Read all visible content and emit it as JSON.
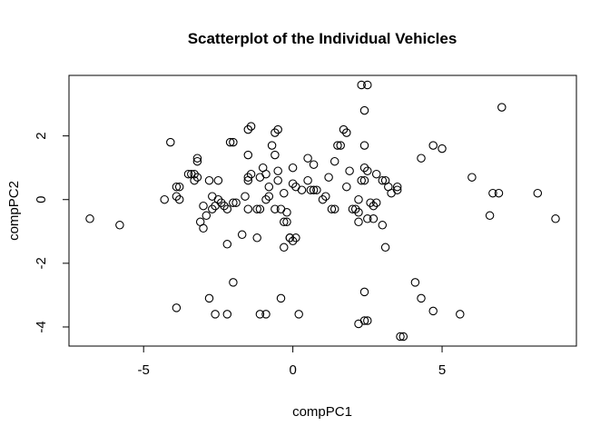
{
  "chart_data": {
    "type": "scatter",
    "title": "Scatterplot of the Individual Vehicles",
    "xlabel": "compPC1",
    "ylabel": "compPC2",
    "xlim": [
      -7.5,
      9.5
    ],
    "ylim": [
      -4.6,
      3.9
    ],
    "xticks": [
      -5,
      0,
      5
    ],
    "yticks": [
      -4,
      -2,
      0,
      2
    ],
    "grid": false,
    "points": [
      {
        "x": -6.8,
        "y": -0.6
      },
      {
        "x": -5.8,
        "y": -0.8
      },
      {
        "x": -4.3,
        "y": 0.0
      },
      {
        "x": -4.1,
        "y": 1.8
      },
      {
        "x": -3.9,
        "y": 0.4
      },
      {
        "x": -3.8,
        "y": 0.4
      },
      {
        "x": -3.9,
        "y": 0.1
      },
      {
        "x": -3.8,
        "y": 0.0
      },
      {
        "x": -3.9,
        "y": -3.4
      },
      {
        "x": -3.5,
        "y": 0.8
      },
      {
        "x": -3.4,
        "y": 0.8
      },
      {
        "x": -3.3,
        "y": 0.8
      },
      {
        "x": -3.2,
        "y": 0.7
      },
      {
        "x": -3.3,
        "y": 0.6
      },
      {
        "x": -3.2,
        "y": 1.2
      },
      {
        "x": -3.2,
        "y": 1.3
      },
      {
        "x": -3.0,
        "y": -0.2
      },
      {
        "x": -3.1,
        "y": -0.7
      },
      {
        "x": -2.9,
        "y": -0.5
      },
      {
        "x": -3.0,
        "y": -0.9
      },
      {
        "x": -2.8,
        "y": 0.6
      },
      {
        "x": -2.7,
        "y": 0.1
      },
      {
        "x": -2.6,
        "y": -0.2
      },
      {
        "x": -2.7,
        "y": -0.3
      },
      {
        "x": -2.5,
        "y": 0.0
      },
      {
        "x": -2.5,
        "y": 0.6
      },
      {
        "x": -2.6,
        "y": -3.6
      },
      {
        "x": -2.8,
        "y": -3.1
      },
      {
        "x": -2.4,
        "y": -0.1
      },
      {
        "x": -2.3,
        "y": -0.2
      },
      {
        "x": -2.2,
        "y": -0.3
      },
      {
        "x": -2.2,
        "y": -1.4
      },
      {
        "x": -2.1,
        "y": 1.8
      },
      {
        "x": -2.0,
        "y": 1.8
      },
      {
        "x": -2.0,
        "y": -0.1
      },
      {
        "x": -1.9,
        "y": -0.1
      },
      {
        "x": -2.0,
        "y": -2.6
      },
      {
        "x": -2.2,
        "y": -3.6
      },
      {
        "x": -1.7,
        "y": -1.1
      },
      {
        "x": -1.6,
        "y": 0.1
      },
      {
        "x": -1.5,
        "y": 0.7
      },
      {
        "x": -1.5,
        "y": 0.6
      },
      {
        "x": -1.4,
        "y": 0.8
      },
      {
        "x": -1.5,
        "y": 1.4
      },
      {
        "x": -1.5,
        "y": 2.2
      },
      {
        "x": -1.4,
        "y": 2.3
      },
      {
        "x": -1.5,
        "y": -0.3
      },
      {
        "x": -1.2,
        "y": -0.3
      },
      {
        "x": -1.1,
        "y": -0.3
      },
      {
        "x": -1.2,
        "y": -1.2
      },
      {
        "x": -1.1,
        "y": 0.7
      },
      {
        "x": -1.0,
        "y": 1.0
      },
      {
        "x": -1.1,
        "y": -3.6
      },
      {
        "x": -0.9,
        "y": -3.6
      },
      {
        "x": -0.9,
        "y": 0.8
      },
      {
        "x": -0.8,
        "y": 0.4
      },
      {
        "x": -0.9,
        "y": 0.0
      },
      {
        "x": -0.8,
        "y": 0.1
      },
      {
        "x": -0.7,
        "y": 1.7
      },
      {
        "x": -0.6,
        "y": 2.1
      },
      {
        "x": -0.5,
        "y": 2.2
      },
      {
        "x": -0.6,
        "y": 1.4
      },
      {
        "x": -0.5,
        "y": 0.9
      },
      {
        "x": -0.5,
        "y": 0.6
      },
      {
        "x": -0.6,
        "y": -0.3
      },
      {
        "x": -0.4,
        "y": -0.3
      },
      {
        "x": -0.3,
        "y": 0.2
      },
      {
        "x": -0.3,
        "y": -0.7
      },
      {
        "x": -0.4,
        "y": -3.1
      },
      {
        "x": -0.3,
        "y": -1.5
      },
      {
        "x": -0.2,
        "y": -0.4
      },
      {
        "x": -0.2,
        "y": -0.7
      },
      {
        "x": -0.1,
        "y": -1.2
      },
      {
        "x": 0.0,
        "y": -1.3
      },
      {
        "x": 0.0,
        "y": 0.5
      },
      {
        "x": 0.1,
        "y": 0.4
      },
      {
        "x": 0.0,
        "y": 1.0
      },
      {
        "x": -0.1,
        "y": -1.2
      },
      {
        "x": 0.1,
        "y": -1.2
      },
      {
        "x": 0.2,
        "y": -3.6
      },
      {
        "x": 0.3,
        "y": 0.3
      },
      {
        "x": 0.5,
        "y": 0.6
      },
      {
        "x": 0.6,
        "y": 0.3
      },
      {
        "x": 0.7,
        "y": 0.3
      },
      {
        "x": 0.8,
        "y": 0.3
      },
      {
        "x": 0.5,
        "y": 1.3
      },
      {
        "x": 0.7,
        "y": 1.1
      },
      {
        "x": 1.0,
        "y": 0.0
      },
      {
        "x": 1.1,
        "y": 0.1
      },
      {
        "x": 1.2,
        "y": 0.7
      },
      {
        "x": 1.3,
        "y": -0.3
      },
      {
        "x": 1.4,
        "y": -0.3
      },
      {
        "x": 1.4,
        "y": 1.2
      },
      {
        "x": 1.5,
        "y": 1.7
      },
      {
        "x": 1.6,
        "y": 1.7
      },
      {
        "x": 1.7,
        "y": 2.2
      },
      {
        "x": 1.8,
        "y": 2.1
      },
      {
        "x": 1.8,
        "y": 0.4
      },
      {
        "x": 1.9,
        "y": 0.9
      },
      {
        "x": 2.0,
        "y": -0.3
      },
      {
        "x": 2.1,
        "y": -0.3
      },
      {
        "x": 2.2,
        "y": 0.0
      },
      {
        "x": 2.2,
        "y": -0.4
      },
      {
        "x": 2.2,
        "y": -0.7
      },
      {
        "x": 2.3,
        "y": 0.6
      },
      {
        "x": 2.2,
        "y": -3.9
      },
      {
        "x": 2.3,
        "y": 3.6
      },
      {
        "x": 2.5,
        "y": 3.6
      },
      {
        "x": 2.4,
        "y": 2.8
      },
      {
        "x": 2.4,
        "y": 1.7
      },
      {
        "x": 2.4,
        "y": 1.0
      },
      {
        "x": 2.5,
        "y": 0.9
      },
      {
        "x": 2.4,
        "y": 0.6
      },
      {
        "x": 2.5,
        "y": -0.6
      },
      {
        "x": 2.4,
        "y": -2.9
      },
      {
        "x": 2.4,
        "y": -3.8
      },
      {
        "x": 2.5,
        "y": -3.8
      },
      {
        "x": 2.6,
        "y": -0.1
      },
      {
        "x": 2.7,
        "y": -0.2
      },
      {
        "x": 2.8,
        "y": -0.1
      },
      {
        "x": 2.7,
        "y": -0.6
      },
      {
        "x": 2.8,
        "y": 0.8
      },
      {
        "x": 3.0,
        "y": 0.6
      },
      {
        "x": 3.0,
        "y": -0.8
      },
      {
        "x": 3.1,
        "y": 0.6
      },
      {
        "x": 3.1,
        "y": -1.5
      },
      {
        "x": 3.2,
        "y": 0.4
      },
      {
        "x": 3.3,
        "y": 0.2
      },
      {
        "x": 3.5,
        "y": 0.4
      },
      {
        "x": 3.5,
        "y": 0.3
      },
      {
        "x": 3.6,
        "y": -4.3
      },
      {
        "x": 3.7,
        "y": -4.3
      },
      {
        "x": 4.1,
        "y": -2.6
      },
      {
        "x": 4.3,
        "y": -3.1
      },
      {
        "x": 4.3,
        "y": 1.3
      },
      {
        "x": 4.7,
        "y": 1.7
      },
      {
        "x": 4.7,
        "y": -3.5
      },
      {
        "x": 5.0,
        "y": 1.6
      },
      {
        "x": 5.6,
        "y": -3.6
      },
      {
        "x": 6.0,
        "y": 0.7
      },
      {
        "x": 6.6,
        "y": -0.5
      },
      {
        "x": 6.7,
        "y": 0.2
      },
      {
        "x": 6.9,
        "y": 0.2
      },
      {
        "x": 7.0,
        "y": 2.9
      },
      {
        "x": 8.2,
        "y": 0.2
      },
      {
        "x": 8.8,
        "y": -0.6
      }
    ]
  }
}
